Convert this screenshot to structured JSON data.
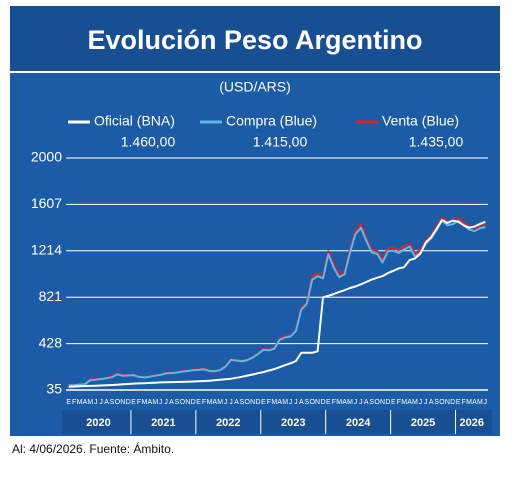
{
  "chart_data": {
    "type": "line",
    "title": "Evolución Peso Argentino",
    "subtitle": "(USD/ARS)",
    "footer": "Al: 4/06/2026. Fuente: Ámbito.",
    "categories": [
      "E",
      "F",
      "M",
      "A",
      "M",
      "J",
      "J",
      "A",
      "S",
      "O",
      "N",
      "D",
      "E",
      "F",
      "M",
      "A",
      "M",
      "J",
      "J",
      "A",
      "S",
      "O",
      "N",
      "D",
      "E",
      "F",
      "M",
      "A",
      "M",
      "J",
      "J",
      "A",
      "S",
      "O",
      "N",
      "D",
      "E",
      "F",
      "M",
      "A",
      "M",
      "J",
      "J",
      "A",
      "S",
      "O",
      "N",
      "D",
      "E",
      "F",
      "M",
      "A",
      "M",
      "J",
      "J",
      "A",
      "S",
      "O",
      "N",
      "D",
      "E",
      "F",
      "M",
      "A",
      "M",
      "J",
      "J",
      "A",
      "S",
      "O",
      "N",
      "D",
      "E",
      "F",
      "M",
      "A",
      "M",
      "J"
    ],
    "years": [
      "2020",
      "2021",
      "2022",
      "2023",
      "2024",
      "2025",
      "2026"
    ],
    "ylim": [
      35,
      2000
    ],
    "yticks": [
      35,
      428,
      821,
      1214,
      1607,
      2000
    ],
    "grid": true,
    "series": [
      {
        "name": "Venta (Blue)",
        "color": "#d8232a",
        "latest": "1.435,00",
        "values": [
          78,
          80,
          85,
          88,
          125,
          128,
          134,
          140,
          150,
          175,
          162,
          165,
          165,
          150,
          145,
          152,
          160,
          168,
          180,
          182,
          187,
          195,
          200,
          208,
          210,
          215,
          200,
          200,
          208,
          239,
          296,
          290,
          283,
          293,
          314,
          346,
          381,
          375,
          390,
          470,
          490,
          494,
          540,
          730,
          780,
          1000,
          1020,
          1000,
          1210,
          1100,
          1010,
          1035,
          1225,
          1380,
          1440,
          1320,
          1225,
          1215,
          1140,
          1235,
          1240,
          1220,
          1250,
          1275,
          1190,
          1220,
          1300,
          1345,
          1420,
          1495,
          1460,
          1470,
          1495,
          1455,
          1420,
          1405,
          1430,
          1435
        ]
      },
      {
        "name": "Compra (Blue)",
        "color": "#5cb8ea",
        "latest": "1.415,00",
        "values": [
          74,
          76,
          81,
          84,
          118,
          121,
          128,
          134,
          144,
          168,
          155,
          158,
          161,
          146,
          141,
          148,
          156,
          164,
          176,
          178,
          183,
          191,
          196,
          203,
          205,
          210,
          195,
          195,
          203,
          234,
          290,
          284,
          277,
          288,
          309,
          341,
          376,
          370,
          385,
          460,
          480,
          489,
          535,
          715,
          765,
          970,
          1000,
          980,
          1185,
          1070,
          990,
          1015,
          1200,
          1355,
          1410,
          1300,
          1200,
          1190,
          1115,
          1210,
          1215,
          1195,
          1225,
          1250,
          1165,
          1195,
          1275,
          1320,
          1390,
          1470,
          1430,
          1440,
          1470,
          1430,
          1395,
          1380,
          1405,
          1415
        ]
      },
      {
        "name": "Oficial (BNA)",
        "color": "#ffffff",
        "latest": "1.460,00",
        "values": [
          63,
          65,
          67,
          69,
          70,
          71,
          73,
          75,
          77,
          80,
          83,
          86,
          89,
          91,
          93,
          95,
          97,
          99,
          100,
          102,
          103,
          104,
          105,
          107,
          109,
          111,
          114,
          117,
          121,
          126,
          131,
          138,
          147,
          157,
          166,
          177,
          187,
          200,
          212,
          228,
          246,
          261,
          280,
          350,
          350,
          350,
          363,
          820,
          833,
          848,
          866,
          880,
          899,
          912,
          930,
          950,
          970,
          985,
          1000,
          1025,
          1045,
          1065,
          1075,
          1135,
          1150,
          1190,
          1285,
          1330,
          1400,
          1475,
          1450,
          1470,
          1460,
          1430,
          1410,
          1420,
          1440,
          1460
        ]
      }
    ]
  }
}
